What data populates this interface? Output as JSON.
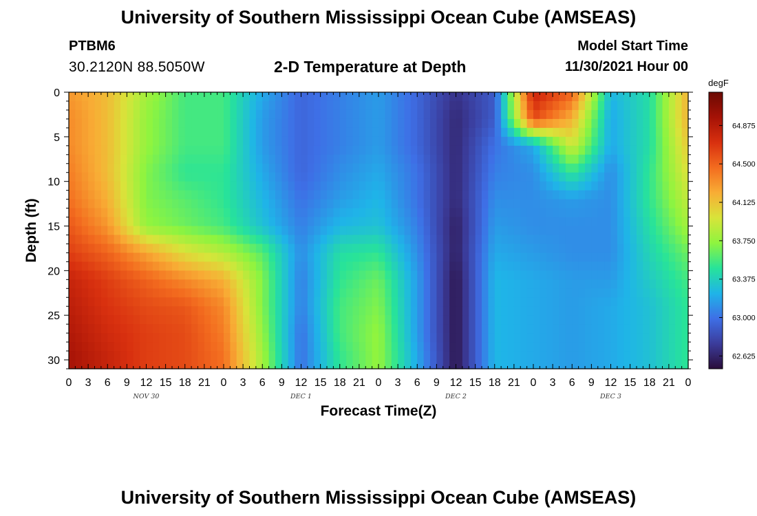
{
  "header": {
    "title": "University of Southern Mississippi Ocean Cube (AMSEAS)",
    "station": "PTBM6",
    "coordinates": "30.2120N  88.5050W",
    "subtitle": "2-D Temperature at Depth",
    "start_label": "Model Start Time",
    "start_value": "11/30/2021 Hour 00"
  },
  "footer": {
    "title": "University of Southern Mississippi Ocean Cube (AMSEAS)"
  },
  "chart_data": {
    "type": "heatmap",
    "title": "2-D Temperature at Depth",
    "xlabel": "Forecast Time(Z)",
    "ylabel": "Depth (ft)",
    "x_unit": "forecast hour",
    "xlim": [
      0,
      96
    ],
    "ylim": [
      31,
      0
    ],
    "x_tick_labels": [
      "0",
      "3",
      "6",
      "9",
      "12",
      "15",
      "18",
      "21",
      "0",
      "3",
      "6",
      "9",
      "12",
      "15",
      "18",
      "21",
      "0",
      "3",
      "6",
      "9",
      "12",
      "15",
      "18",
      "21",
      "0",
      "3",
      "6",
      "9",
      "12",
      "15",
      "18",
      "21",
      "0"
    ],
    "day_labels": [
      {
        "hour": 12,
        "label": "NOV 30"
      },
      {
        "hour": 36,
        "label": "DEC 1"
      },
      {
        "hour": 60,
        "label": "DEC 2"
      },
      {
        "hour": 84,
        "label": "DEC 3"
      }
    ],
    "y_ticks": [
      0,
      5,
      10,
      15,
      20,
      25,
      30
    ],
    "colorbar": {
      "unit": "degF",
      "range": [
        62.5,
        65.2
      ],
      "ticks": [
        "64.875",
        "64.500",
        "64.125",
        "63.750",
        "63.375",
        "63.000",
        "62.625"
      ],
      "colors": [
        "#2a0d3a",
        "#3b3c9b",
        "#3e6fe6",
        "#1fb4e8",
        "#27e39a",
        "#8ef43f",
        "#d8e43a",
        "#f8ad35",
        "#f36c1f",
        "#d8300f",
        "#a51206",
        "#6b0a03"
      ]
    },
    "depths_ft": [
      0,
      3,
      6,
      9,
      12,
      15,
      18,
      21,
      24,
      27,
      30,
      31
    ],
    "times_hr": [
      0,
      6,
      12,
      18,
      24,
      30,
      36,
      42,
      48,
      54,
      60,
      66,
      72,
      78,
      84,
      90,
      96
    ],
    "values": [
      [
        64.3,
        64.15,
        63.8,
        63.55,
        63.55,
        63.2,
        62.95,
        63.05,
        63.15,
        62.95,
        62.7,
        62.9,
        64.8,
        64.5,
        63.25,
        63.45,
        64.2
      ],
      [
        64.35,
        64.15,
        63.75,
        63.55,
        63.55,
        63.15,
        62.95,
        63.05,
        63.15,
        62.95,
        62.65,
        62.9,
        64.6,
        64.2,
        63.2,
        63.45,
        64.2
      ],
      [
        64.35,
        64.15,
        63.75,
        63.55,
        63.55,
        63.15,
        62.95,
        63.05,
        63.15,
        62.95,
        62.65,
        63.0,
        63.2,
        63.95,
        63.2,
        63.45,
        64.1
      ],
      [
        64.4,
        64.15,
        63.7,
        63.5,
        63.5,
        63.2,
        62.95,
        63.1,
        63.2,
        63.0,
        62.65,
        63.05,
        63.1,
        63.5,
        63.1,
        63.5,
        64.0
      ],
      [
        64.45,
        64.2,
        63.7,
        63.6,
        63.5,
        63.25,
        63.0,
        63.15,
        63.25,
        63.0,
        62.65,
        63.1,
        63.1,
        63.15,
        63.1,
        63.5,
        63.9
      ],
      [
        64.55,
        64.3,
        63.75,
        63.65,
        63.55,
        63.3,
        63.05,
        63.25,
        63.3,
        63.05,
        62.6,
        63.15,
        63.1,
        63.1,
        63.1,
        63.45,
        63.8
      ],
      [
        64.65,
        64.5,
        64.25,
        64.0,
        63.85,
        63.6,
        63.1,
        63.45,
        63.5,
        63.1,
        62.6,
        63.2,
        63.15,
        63.1,
        63.1,
        63.4,
        63.65
      ],
      [
        64.8,
        64.65,
        64.5,
        64.35,
        64.2,
        63.7,
        63.05,
        63.5,
        63.65,
        63.15,
        62.55,
        63.25,
        63.2,
        63.15,
        63.15,
        63.35,
        63.55
      ],
      [
        64.85,
        64.7,
        64.6,
        64.55,
        64.35,
        63.7,
        63.05,
        63.55,
        63.7,
        63.15,
        62.55,
        63.25,
        63.2,
        63.15,
        63.2,
        63.3,
        63.5
      ],
      [
        64.9,
        64.75,
        64.65,
        64.6,
        64.4,
        63.75,
        63.0,
        63.55,
        63.75,
        63.15,
        62.55,
        63.25,
        63.2,
        63.15,
        63.2,
        63.3,
        63.5
      ],
      [
        64.95,
        64.8,
        64.65,
        64.6,
        64.45,
        63.8,
        63.0,
        63.5,
        63.75,
        63.2,
        62.55,
        63.25,
        63.2,
        63.15,
        63.2,
        63.3,
        63.5
      ],
      [
        64.95,
        64.8,
        64.65,
        64.6,
        64.45,
        63.8,
        63.0,
        63.5,
        63.75,
        63.2,
        62.55,
        63.25,
        63.2,
        63.15,
        63.2,
        63.3,
        63.5
      ]
    ]
  }
}
